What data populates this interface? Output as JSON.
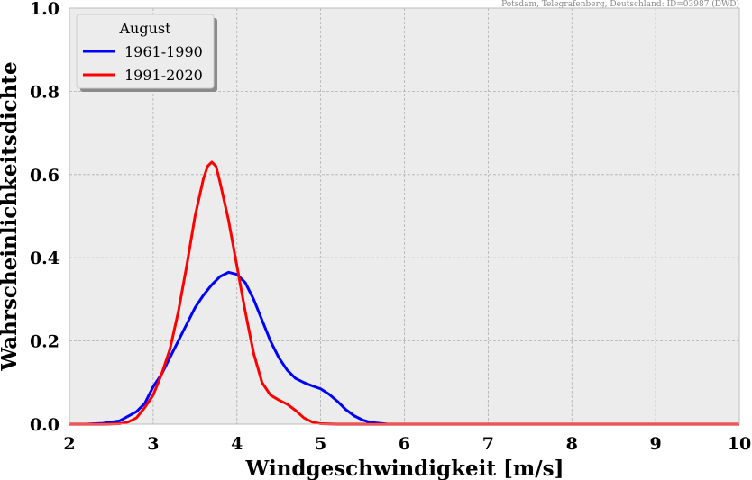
{
  "chart_data": {
    "type": "line",
    "source_note": "Potsdam, Telegrafenberg, Deutschland: ID=03987 (DWD)",
    "xlabel": "Windgeschwindigkeit [m/s]",
    "ylabel": "Wahrscheinlichkeitsdichte",
    "xlim": [
      2,
      10
    ],
    "ylim": [
      0,
      1.0
    ],
    "xticks": [
      2,
      3,
      4,
      5,
      6,
      7,
      8,
      9,
      10
    ],
    "yticks": [
      0.0,
      0.2,
      0.4,
      0.6,
      0.8,
      1.0
    ],
    "ytick_labels": [
      "0.0",
      "0.2",
      "0.4",
      "0.6",
      "0.8",
      "1.0"
    ],
    "grid": true,
    "legend": {
      "title": "August",
      "placement": "top-left"
    },
    "series": [
      {
        "name": "1961-1990",
        "color": "#0000ff",
        "points": [
          [
            2.0,
            0.0
          ],
          [
            2.2,
            0.0
          ],
          [
            2.4,
            0.002
          ],
          [
            2.6,
            0.008
          ],
          [
            2.8,
            0.03
          ],
          [
            2.9,
            0.05
          ],
          [
            3.0,
            0.09
          ],
          [
            3.1,
            0.12
          ],
          [
            3.2,
            0.16
          ],
          [
            3.3,
            0.2
          ],
          [
            3.4,
            0.24
          ],
          [
            3.5,
            0.28
          ],
          [
            3.6,
            0.31
          ],
          [
            3.7,
            0.335
          ],
          [
            3.8,
            0.355
          ],
          [
            3.9,
            0.365
          ],
          [
            4.0,
            0.36
          ],
          [
            4.1,
            0.34
          ],
          [
            4.2,
            0.3
          ],
          [
            4.3,
            0.25
          ],
          [
            4.4,
            0.2
          ],
          [
            4.5,
            0.16
          ],
          [
            4.6,
            0.13
          ],
          [
            4.7,
            0.11
          ],
          [
            4.8,
            0.1
          ],
          [
            4.9,
            0.092
          ],
          [
            5.0,
            0.085
          ],
          [
            5.1,
            0.072
          ],
          [
            5.2,
            0.055
          ],
          [
            5.3,
            0.035
          ],
          [
            5.4,
            0.02
          ],
          [
            5.5,
            0.01
          ],
          [
            5.6,
            0.004
          ],
          [
            5.8,
            0.0
          ],
          [
            6.0,
            0.0
          ],
          [
            8.0,
            0.0
          ],
          [
            10.0,
            0.0
          ]
        ]
      },
      {
        "name": "1991-2020",
        "color": "#ff0000",
        "points": [
          [
            2.0,
            0.0
          ],
          [
            2.4,
            0.0
          ],
          [
            2.6,
            0.001
          ],
          [
            2.7,
            0.005
          ],
          [
            2.8,
            0.015
          ],
          [
            2.9,
            0.04
          ],
          [
            3.0,
            0.07
          ],
          [
            3.1,
            0.12
          ],
          [
            3.2,
            0.18
          ],
          [
            3.3,
            0.27
          ],
          [
            3.4,
            0.38
          ],
          [
            3.5,
            0.5
          ],
          [
            3.6,
            0.59
          ],
          [
            3.65,
            0.62
          ],
          [
            3.7,
            0.63
          ],
          [
            3.75,
            0.62
          ],
          [
            3.8,
            0.58
          ],
          [
            3.9,
            0.49
          ],
          [
            4.0,
            0.38
          ],
          [
            4.1,
            0.27
          ],
          [
            4.2,
            0.17
          ],
          [
            4.3,
            0.1
          ],
          [
            4.4,
            0.07
          ],
          [
            4.5,
            0.058
          ],
          [
            4.6,
            0.048
          ],
          [
            4.7,
            0.033
          ],
          [
            4.8,
            0.015
          ],
          [
            4.9,
            0.005
          ],
          [
            5.0,
            0.001
          ],
          [
            5.2,
            0.0
          ],
          [
            6.0,
            0.0
          ],
          [
            8.0,
            0.0
          ],
          [
            10.0,
            0.0
          ]
        ]
      }
    ]
  }
}
